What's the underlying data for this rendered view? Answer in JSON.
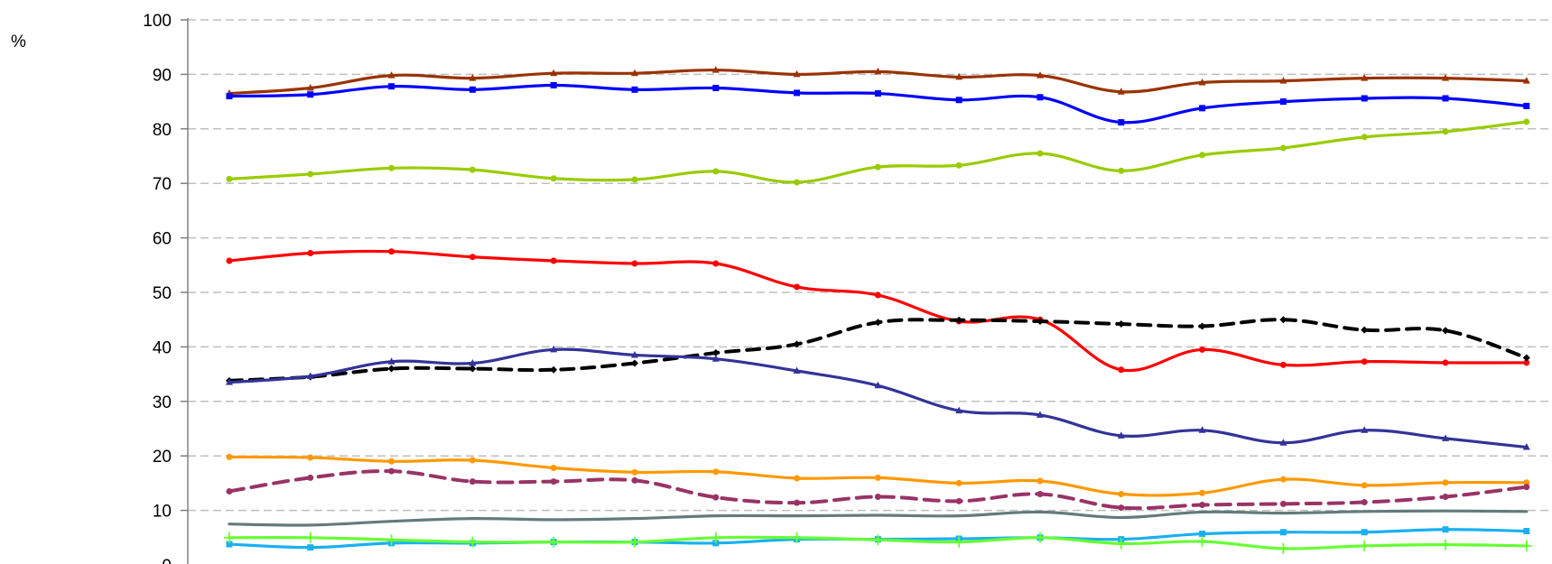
{
  "chart_data": {
    "type": "line",
    "y_unit": "%",
    "ylim": [
      0,
      100
    ],
    "y_ticks": [
      "0",
      "10",
      "20",
      "30",
      "40",
      "50",
      "60",
      "70",
      "80",
      "90",
      "100"
    ],
    "grid": true,
    "legend": "none",
    "x_count": 17,
    "series": [
      {
        "color": "#993300",
        "marker": "triangle",
        "dashed": false,
        "values": [
          86.5,
          87.5,
          89.8,
          89.3,
          90.2,
          90.2,
          90.8,
          90.0,
          90.5,
          89.5,
          89.8,
          86.8,
          88.5,
          88.8,
          89.3,
          89.3,
          88.8
        ]
      },
      {
        "color": "#0000ff",
        "marker": "square",
        "dashed": false,
        "values": [
          86.0,
          86.3,
          87.8,
          87.2,
          88.0,
          87.2,
          87.5,
          86.6,
          86.5,
          85.3,
          85.8,
          81.2,
          83.8,
          85.0,
          85.6,
          85.6,
          84.2
        ]
      },
      {
        "color": "#99cc00",
        "marker": "circle",
        "dashed": false,
        "values": [
          70.8,
          71.7,
          72.8,
          72.5,
          70.9,
          70.7,
          72.2,
          70.2,
          73.0,
          73.3,
          75.5,
          72.3,
          75.2,
          76.5,
          78.5,
          79.5,
          81.3
        ]
      },
      {
        "color": "#ff0000",
        "marker": "circle",
        "dashed": false,
        "values": [
          55.8,
          57.2,
          57.5,
          56.5,
          55.8,
          55.3,
          55.3,
          51.0,
          49.5,
          44.7,
          45.0,
          35.8,
          39.5,
          36.7,
          37.3,
          37.1,
          37.1
        ]
      },
      {
        "color": "#000000",
        "marker": "diamond",
        "dashed": true,
        "values": [
          33.8,
          34.5,
          36.0,
          36.0,
          35.8,
          37.0,
          38.9,
          40.5,
          44.5,
          44.9,
          44.7,
          44.2,
          43.8,
          45.0,
          43.1,
          43.0,
          38.0
        ]
      },
      {
        "color": "#333399",
        "marker": "triangle",
        "dashed": false,
        "values": [
          33.5,
          34.6,
          37.3,
          37.0,
          39.5,
          38.5,
          37.8,
          35.6,
          32.9,
          28.3,
          27.5,
          23.7,
          24.7,
          22.4,
          24.7,
          23.2,
          21.6
        ]
      },
      {
        "color": "#ff9900",
        "marker": "circle",
        "dashed": false,
        "values": [
          19.8,
          19.7,
          19.0,
          19.2,
          17.8,
          17.0,
          17.1,
          15.9,
          16.0,
          15.0,
          15.4,
          13.0,
          13.2,
          15.7,
          14.6,
          15.1,
          15.1
        ]
      },
      {
        "color": "#993366",
        "marker": "circle",
        "dashed": true,
        "values": [
          13.5,
          16.0,
          17.2,
          15.3,
          15.3,
          15.5,
          12.4,
          11.4,
          12.5,
          11.7,
          13.0,
          10.5,
          11.0,
          11.2,
          11.5,
          12.5,
          14.3
        ]
      },
      {
        "color": "#637b7b",
        "marker": "none",
        "dashed": false,
        "values": [
          7.5,
          7.3,
          8.0,
          8.5,
          8.3,
          8.5,
          9.0,
          9.0,
          9.1,
          9.0,
          9.7,
          8.7,
          9.7,
          9.5,
          9.8,
          9.9,
          9.8
        ]
      },
      {
        "color": "#1ab0f0",
        "marker": "square",
        "dashed": false,
        "values": [
          3.8,
          3.2,
          4.0,
          4.0,
          4.2,
          4.2,
          4.0,
          4.7,
          4.7,
          4.8,
          5.0,
          4.7,
          5.7,
          6.0,
          6.0,
          6.5,
          6.2
        ]
      },
      {
        "color": "#66ff33",
        "marker": "plus",
        "dashed": false,
        "values": [
          5.0,
          5.0,
          4.6,
          4.2,
          4.2,
          4.2,
          5.0,
          5.0,
          4.6,
          4.2,
          5.0,
          3.9,
          4.3,
          3.0,
          3.5,
          3.7,
          3.5
        ]
      }
    ]
  }
}
